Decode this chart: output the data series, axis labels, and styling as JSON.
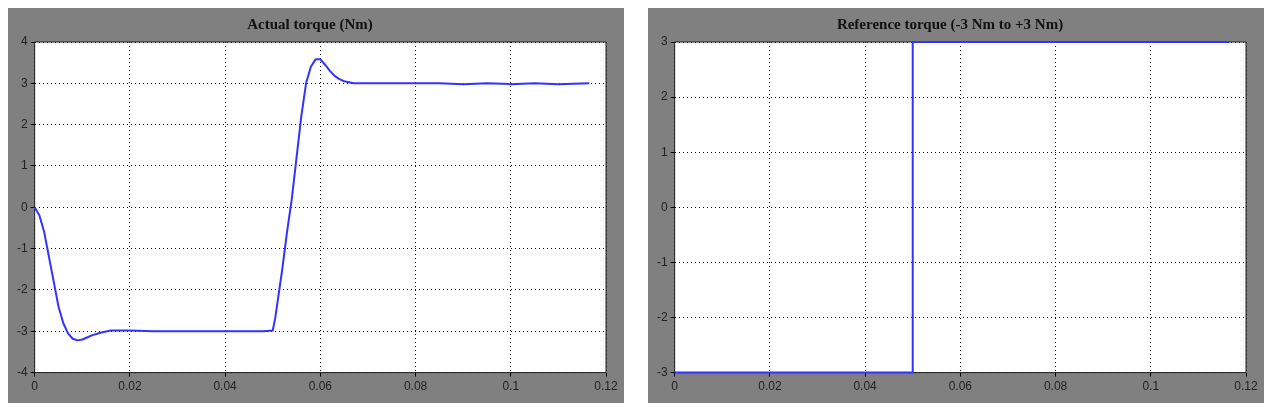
{
  "chart_data": [
    {
      "type": "line",
      "title": "Actual torque (Nm)",
      "xlim": [
        0,
        0.12
      ],
      "ylim": [
        -4,
        4
      ],
      "xticks": [
        0,
        0.02,
        0.04,
        0.06,
        0.08,
        0.1,
        0.12
      ],
      "yticks": [
        -4,
        -3,
        -2,
        -1,
        0,
        1,
        2,
        3,
        4
      ],
      "grid": true,
      "series": [
        {
          "color": "#3333ff",
          "x": [
            0,
            0.001,
            0.002,
            0.003,
            0.004,
            0.005,
            0.006,
            0.007,
            0.008,
            0.009,
            0.01,
            0.011,
            0.012,
            0.014,
            0.016,
            0.02,
            0.025,
            0.03,
            0.035,
            0.04,
            0.045,
            0.048,
            0.05,
            0.0505,
            0.051,
            0.052,
            0.053,
            0.054,
            0.055,
            0.056,
            0.057,
            0.058,
            0.059,
            0.06,
            0.061,
            0.062,
            0.063,
            0.064,
            0.065,
            0.067,
            0.07,
            0.075,
            0.08,
            0.085,
            0.09,
            0.095,
            0.1,
            0.105,
            0.11,
            0.1165
          ],
          "values": [
            0,
            -0.2,
            -0.6,
            -1.2,
            -1.8,
            -2.4,
            -2.8,
            -3.05,
            -3.18,
            -3.22,
            -3.2,
            -3.15,
            -3.1,
            -3.03,
            -2.98,
            -2.98,
            -3.0,
            -3.0,
            -3.0,
            -3.0,
            -3.0,
            -3.0,
            -2.98,
            -2.7,
            -2.3,
            -1.5,
            -0.6,
            0.2,
            1.2,
            2.2,
            3.0,
            3.4,
            3.58,
            3.58,
            3.45,
            3.3,
            3.18,
            3.1,
            3.05,
            3.0,
            3.0,
            3.0,
            3.0,
            3.0,
            2.98,
            3.0,
            2.98,
            3.0,
            2.98,
            3.0
          ]
        }
      ]
    },
    {
      "type": "step",
      "title": "Reference torque (-3 Nm to +3 Nm)",
      "xlim": [
        0,
        0.12
      ],
      "ylim": [
        -3,
        3
      ],
      "xticks": [
        0,
        0.02,
        0.04,
        0.06,
        0.08,
        0.1,
        0.12
      ],
      "yticks": [
        -3,
        -2,
        -1,
        0,
        1,
        2,
        3
      ],
      "grid": true,
      "series": [
        {
          "color": "#3333ff",
          "x": [
            0,
            0.05,
            0.1165
          ],
          "values": [
            -3,
            3,
            3
          ]
        }
      ]
    }
  ]
}
